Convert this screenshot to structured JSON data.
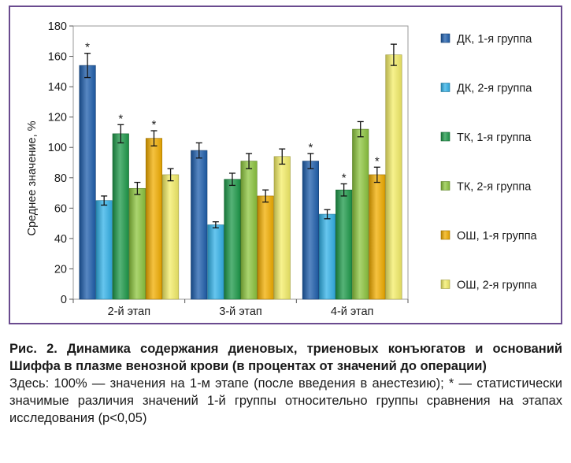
{
  "chart_data": {
    "type": "bar",
    "ylabel": "Среднее значение, %",
    "ylim": [
      0,
      180
    ],
    "yticks": [
      0,
      20,
      40,
      60,
      80,
      100,
      120,
      140,
      160,
      180
    ],
    "grid": false,
    "legend_position": "right",
    "categories": [
      "2-й этап",
      "3-й этап",
      "4-й этап"
    ],
    "series": [
      {
        "name": "ДК, 1-я группа",
        "color": "#1f5fad",
        "values": [
          154,
          98,
          91
        ],
        "errors": [
          8,
          5,
          5
        ],
        "significant": [
          true,
          false,
          true
        ]
      },
      {
        "name": "ДК, 2-я группа",
        "color": "#33b2e8",
        "values": [
          65,
          49,
          56
        ],
        "errors": [
          3,
          2,
          3
        ],
        "significant": [
          false,
          false,
          false
        ]
      },
      {
        "name": "ТК, 1-я группа",
        "color": "#1e9a4a",
        "values": [
          109,
          79,
          72
        ],
        "errors": [
          6,
          4,
          4
        ],
        "significant": [
          true,
          false,
          true
        ]
      },
      {
        "name": "ТК, 2-я группа",
        "color": "#8dc63f",
        "values": [
          73,
          91,
          112
        ],
        "errors": [
          4,
          5,
          5
        ],
        "significant": [
          false,
          false,
          false
        ]
      },
      {
        "name": "ОШ, 1-я группа",
        "color": "#f2ad00",
        "values": [
          106,
          68,
          82
        ],
        "errors": [
          5,
          4,
          5
        ],
        "significant": [
          true,
          false,
          true
        ]
      },
      {
        "name": "ОШ, 2-я группа",
        "color": "#f4ee68",
        "values": [
          82,
          94,
          161
        ],
        "errors": [
          4,
          5,
          7
        ],
        "significant": [
          false,
          false,
          false
        ]
      }
    ],
    "significance_marker": "*"
  },
  "caption": {
    "title": "Рис. 2. Динамика содержания диеновых, триеновых конъюгатов и оснований Шиффа в плазме венозной крови (в процентах от значений до операции)",
    "note": "Здесь: 100% — значения на 1-м этапе (после введения в анестезию); * — статистически значимые различия значений 1-й группы относительно группы сравнения на этапах исследования (p<0,05)"
  }
}
